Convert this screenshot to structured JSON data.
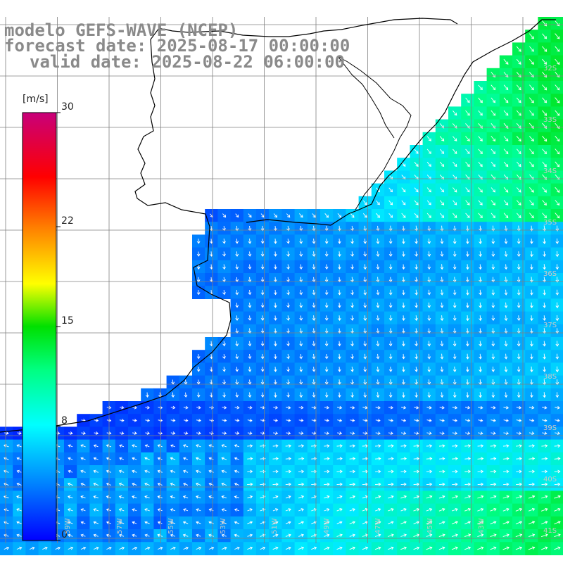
{
  "title": {
    "model": "modelo GEFS-WAVE (NCEP)",
    "forecast": "forecast date: 2025-08-17 00:00:00",
    "valid": "valid date: 2025-08-22 06:00:00"
  },
  "colorbar": {
    "unit": "[m/s]",
    "ticks": [
      {
        "label": "30",
        "value": 30
      },
      {
        "label": "22",
        "value": 22
      },
      {
        "label": "15",
        "value": 15
      },
      {
        "label": "8",
        "value": 8
      },
      {
        "label": "0",
        "value": 0
      }
    ],
    "min": 0,
    "max": 30,
    "colors": [
      "#0000ff",
      "#00a0ff",
      "#00e8ff",
      "#00ff80",
      "#00e000",
      "#ffff00",
      "#ffa000",
      "#ff0000",
      "#ff0060",
      "#c8007a"
    ]
  },
  "grid": {
    "lon_labels": [
      "59W",
      "57W",
      "55W",
      "53W",
      "51W",
      "49W",
      "47W",
      "45W",
      "43W"
    ],
    "lat_labels": [
      "32S",
      "33S",
      "34S",
      "35S",
      "36S",
      "37S",
      "38S",
      "39S",
      "40S",
      "41S"
    ]
  },
  "colors": {
    "land": "#ffffff",
    "coast": "#000000",
    "grid": "#808080",
    "arrow": "#ffffff",
    "title": "#8a8a8a"
  }
}
